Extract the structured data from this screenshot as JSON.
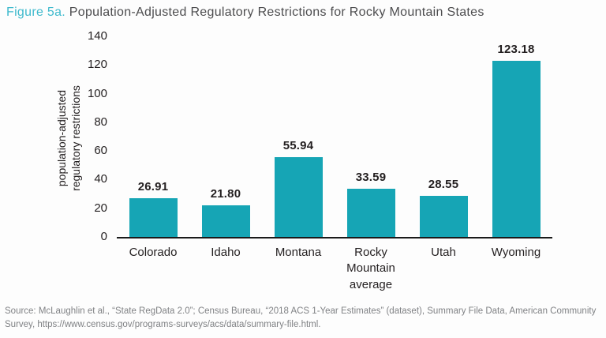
{
  "title": {
    "prefix": "Figure 5a.",
    "rest": " Population-Adjusted Regulatory Restrictions for Rocky Mountain States"
  },
  "chart_data": {
    "type": "bar",
    "title": "Population-Adjusted Regulatory Restrictions for Rocky Mountain States",
    "categories": [
      "Colorado",
      "Idaho",
      "Montana",
      "Rocky Mountain average",
      "Utah",
      "Wyoming"
    ],
    "values": [
      26.91,
      21.8,
      55.94,
      33.59,
      28.55,
      123.18
    ],
    "value_labels": [
      "26.91",
      "21.80",
      "55.94",
      "33.59",
      "28.55",
      "123.18"
    ],
    "xlabel": "",
    "ylabel": "population-adjusted regulatory restrictions",
    "ylabel_lines": [
      "population-adjusted",
      "regulatory restrictions"
    ],
    "ylim": [
      0,
      140
    ],
    "yticks": [
      0,
      20,
      40,
      60,
      80,
      100,
      120,
      140
    ],
    "grid": false,
    "legend": null,
    "bar_color": "#16a5b5"
  },
  "colors": {
    "bar_teal": "#16a5b5",
    "figure_label_teal": "#3fbacd",
    "title_text": "#4d4d4f",
    "axis_text": "#231f20",
    "source_text": "#808285",
    "baseline": "#1a1a1a"
  },
  "source": {
    "text": "Source: McLaughlin et al., “State RegData 2.0”; Census Bureau, “2018 ACS 1-Year Estimates” (dataset), Summary File Data, American Community Survey, https://www.census.gov/programs-surveys/acs/data/summary-file.html."
  }
}
